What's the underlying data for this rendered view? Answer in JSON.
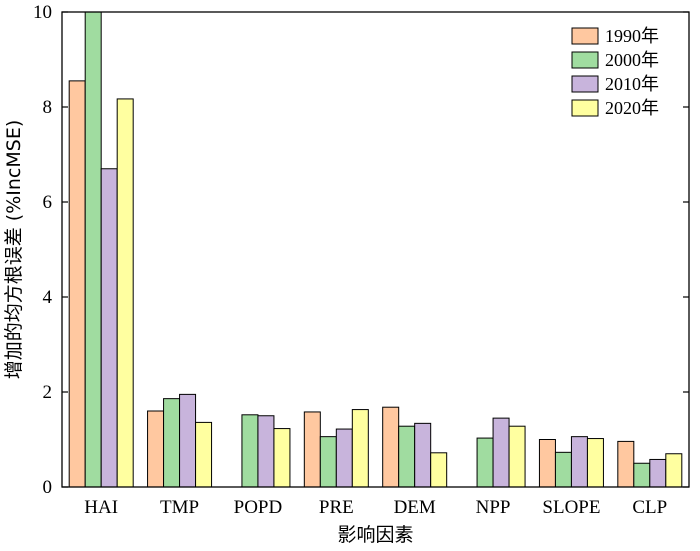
{
  "chart_data": {
    "type": "bar",
    "title": "",
    "xlabel": "影响因素",
    "ylabel": "增加的均方根误差 (%IncMSE)",
    "ylim": [
      0,
      10
    ],
    "yticks": [
      "0",
      "2",
      "4",
      "6",
      "8",
      "10"
    ],
    "grid": false,
    "legend_position": "top-right",
    "categories": [
      "HAI",
      "TMP",
      "POPD",
      "PRE",
      "DEM",
      "NPP",
      "SLOPE",
      "CLP"
    ],
    "series": [
      {
        "name": "1990年",
        "color": "#FFC8A0",
        "values": [
          8.55,
          1.6,
          null,
          1.58,
          1.68,
          null,
          1.0,
          0.96
        ]
      },
      {
        "name": "2000年",
        "color": "#A0DCA0",
        "values": [
          10.2,
          1.86,
          1.52,
          1.06,
          1.28,
          1.03,
          0.73,
          0.5
        ]
      },
      {
        "name": "2010年",
        "color": "#C8B4DC",
        "values": [
          6.7,
          1.95,
          1.5,
          1.22,
          1.34,
          1.45,
          1.06,
          0.58
        ]
      },
      {
        "name": "2020年",
        "color": "#FFFFA0",
        "values": [
          8.17,
          1.36,
          1.23,
          1.63,
          0.72,
          1.28,
          1.02,
          0.7
        ]
      }
    ]
  }
}
